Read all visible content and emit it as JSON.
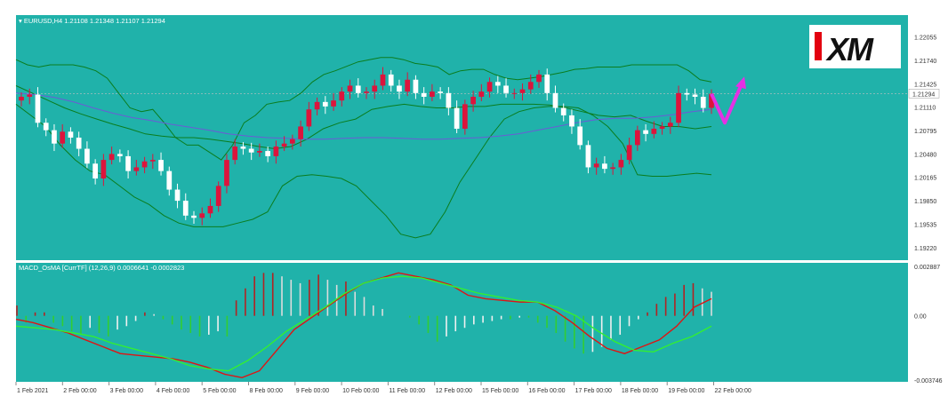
{
  "chart_data": [
    {
      "type": "candlestick",
      "title": "EURUSD,H4  1.21108 1.21348 1.21107 1.21294",
      "symbol": "EURUSD,H4",
      "ohlc_header": "1.21108 1.21348 1.21107 1.21294",
      "current_price_label": "1.21294",
      "current_price": 1.21294,
      "ylim": [
        1.1905,
        1.2235
      ],
      "y_ticks": [
        "1.22055",
        "1.21740",
        "1.21425",
        "1.21110",
        "1.20795",
        "1.20480",
        "1.20165",
        "1.19850",
        "1.19535",
        "1.19220"
      ],
      "x_ticks": [
        "1 Feb 2021",
        "2 Feb 00:00",
        "3 Feb 00:00",
        "4 Feb 00:00",
        "5 Feb 00:00",
        "8 Feb 00:00",
        "9 Feb 00:00",
        "10 Feb 00:00",
        "11 Feb 00:00",
        "12 Feb 00:00",
        "15 Feb 00:00",
        "16 Feb 00:00",
        "17 Feb 00:00",
        "18 Feb 00:00",
        "19 Feb 00:00",
        "22 Feb 00:00"
      ],
      "candles_close": [
        1.2125,
        1.2128,
        1.209,
        1.208,
        1.2062,
        1.2078,
        1.207,
        1.2055,
        1.2035,
        1.2015,
        1.204,
        1.2048,
        1.2045,
        1.2025,
        1.203,
        1.2038,
        1.204,
        1.2025,
        1.2,
        1.1985,
        1.1965,
        1.1962,
        1.1968,
        1.1978,
        1.2005,
        1.204,
        1.2058,
        1.2055,
        1.205,
        1.2052,
        1.2045,
        1.2058,
        1.2062,
        1.2068,
        1.2085,
        1.2108,
        1.2118,
        1.2112,
        1.212,
        1.2132,
        1.214,
        1.213,
        1.2132,
        1.214,
        1.2155,
        1.214,
        1.2132,
        1.2148,
        1.213,
        1.2125,
        1.2132,
        1.213,
        1.211,
        1.2082,
        1.2115,
        1.2125,
        1.2132,
        1.2145,
        1.214,
        1.213,
        1.213,
        1.2135,
        1.2145,
        1.2155,
        1.213,
        1.211,
        1.21,
        1.2085,
        1.206,
        1.203,
        1.2035,
        1.2028,
        1.203,
        1.204,
        1.206,
        1.208,
        1.2075,
        1.2082,
        1.2085,
        1.209,
        1.213,
        1.2128,
        1.2125,
        1.211,
        1.2129
      ],
      "bollinger_upper": [
        1.2175,
        1.2168,
        1.2165,
        1.2168,
        1.2168,
        1.2168,
        1.2165,
        1.216,
        1.215,
        1.213,
        1.211,
        1.2105,
        1.2108,
        1.209,
        1.207,
        1.206,
        1.206,
        1.205,
        1.204,
        1.206,
        1.209,
        1.21,
        1.2115,
        1.2118,
        1.212,
        1.213,
        1.2145,
        1.2155,
        1.216,
        1.2166,
        1.2172,
        1.2175,
        1.2178,
        1.2178,
        1.2175,
        1.217,
        1.2168,
        1.2165,
        1.2155,
        1.216,
        1.2162,
        1.2162,
        1.2155,
        1.215,
        1.2148,
        1.215,
        1.2152,
        1.2155,
        1.2158,
        1.2162,
        1.2163,
        1.2165,
        1.2165,
        1.2165,
        1.2168,
        1.2168,
        1.2168,
        1.2168,
        1.2168,
        1.216,
        1.2148,
        1.2145
      ],
      "bollinger_middle": [
        1.214,
        1.213,
        1.212,
        1.211,
        1.2102,
        1.2095,
        1.2088,
        1.2082,
        1.2075,
        1.2072,
        1.207,
        1.207,
        1.2068,
        1.2065,
        1.2062,
        1.2058,
        1.2055,
        1.2058,
        1.2068,
        1.2082,
        1.209,
        1.2095,
        1.2108,
        1.2112,
        1.2115,
        1.2112,
        1.211,
        1.211,
        1.2112,
        1.2112,
        1.2115,
        1.2115,
        1.2115,
        1.2114,
        1.211,
        1.2105,
        1.21,
        1.2098,
        1.21,
        1.2092,
        1.2085,
        1.2085,
        1.2082,
        1.2085
      ],
      "bollinger_lower": [
        1.2115,
        1.21,
        1.2085,
        1.206,
        1.204,
        1.2025,
        1.202,
        1.2005,
        1.199,
        1.198,
        1.1965,
        1.1955,
        1.195,
        1.195,
        1.195,
        1.1955,
        1.196,
        1.197,
        1.2005,
        1.2018,
        1.202,
        1.2018,
        1.2015,
        1.2005,
        1.1985,
        1.1965,
        1.194,
        1.1935,
        1.194,
        1.197,
        1.201,
        1.204,
        1.207,
        1.2095,
        1.2105,
        1.211,
        1.2112,
        1.2112,
        1.211,
        1.21,
        1.2085,
        1.2062,
        1.202,
        1.2018,
        1.2018,
        1.202,
        1.2022,
        1.202
      ],
      "moving_average": [
        1.213,
        1.2128,
        1.2124,
        1.2118,
        1.211,
        1.2103,
        1.2097,
        1.2093,
        1.2088,
        1.2084,
        1.208,
        1.2075,
        1.2072,
        1.207,
        1.2069,
        1.2068,
        1.2068,
        1.2069,
        1.207,
        1.207,
        1.2069,
        1.2068,
        1.2068,
        1.2069,
        1.207,
        1.2072,
        1.2075,
        1.208,
        1.2085,
        1.209,
        1.2094,
        1.2096,
        1.2096,
        1.2098,
        1.2101,
        1.2105,
        1.2108
      ],
      "forecast_arrow_prices": [
        1.2129,
        1.209,
        1.2145
      ],
      "logo_text": "XM"
    },
    {
      "type": "histogram",
      "title": "MACD_OsMA [CurrTF] (12,26,9) 0.0006641 -0.0002823",
      "indicator": "MACD_OsMA [CurrTF] (12,26,9)",
      "values_text": "0.0006641 -0.0002823",
      "ylim": [
        -0.00374,
        0.00288
      ],
      "y_ticks": [
        "0.002887",
        "0.00",
        "-0.003746"
      ],
      "histogram": [
        0.0006,
        -0.0004,
        0.0002,
        0.0002,
        -0.0004,
        -0.0006,
        -0.0009,
        -0.0011,
        -0.0007,
        -0.001,
        -0.0012,
        -0.0008,
        -0.0006,
        -0.0003,
        0.0002,
        0.0001,
        -0.0002,
        -0.0005,
        -0.0008,
        -0.001,
        -0.0012,
        -0.0011,
        -0.0009,
        -0.0012,
        0.0009,
        0.0016,
        0.0023,
        0.0025,
        0.0025,
        0.0023,
        0.0021,
        0.0019,
        0.0021,
        0.0024,
        0.0021,
        0.0018,
        0.002,
        0.0014,
        0.0011,
        0.0006,
        0.0004,
        0.0,
        0.0,
        -0.0001,
        -0.0005,
        -0.001,
        -0.0015,
        -0.0012,
        -0.0009,
        -0.0007,
        -0.0005,
        -0.0004,
        -0.0003,
        -0.0002,
        -0.0002,
        -0.0001,
        -0.0001,
        -0.0004,
        -0.0007,
        -0.001,
        -0.0015,
        -0.0019,
        -0.0022,
        -0.0021,
        -0.0018,
        -0.0014,
        -0.0011,
        -0.0006,
        -0.0002,
        0.0002,
        0.0007,
        0.0011,
        0.0013,
        0.0018,
        0.0019,
        0.0016,
        0.0014
      ],
      "series": [
        {
          "name": "",
          "color": "#e01313",
          "values": [
            -0.0002,
            -0.0004,
            -0.0007,
            -0.001,
            -0.0014,
            -0.0018,
            -0.0022,
            -0.0023,
            -0.0024,
            -0.0025,
            -0.0027,
            -0.003,
            -0.0034,
            -0.0036,
            -0.0032,
            -0.002,
            -0.0008,
            -0.0001,
            0.0006,
            0.0013,
            0.0019,
            0.0022,
            0.0025,
            0.0023,
            0.0021,
            0.0018,
            0.0012,
            0.001,
            0.0009,
            0.0008,
            0.0008,
            0.0003,
            -0.0004,
            -0.0012,
            -0.0019,
            -0.0022,
            -0.0018,
            -0.0014,
            -0.0006,
            0.0005,
            0.001
          ]
        },
        {
          "name": "",
          "color": "#33ee33",
          "values": [
            -0.0006,
            -0.0007,
            -0.0008,
            -0.001,
            -0.0012,
            -0.0016,
            -0.0019,
            -0.0022,
            -0.0025,
            -0.0029,
            -0.0031,
            -0.0032,
            -0.0026,
            -0.0018,
            -0.0009,
            -0.0002,
            0.0005,
            0.0013,
            0.0019,
            0.0022,
            0.0023,
            0.0022,
            0.0019,
            0.0016,
            0.0013,
            0.0011,
            0.0009,
            0.0008,
            0.0005,
            0.0,
            -0.0008,
            -0.0015,
            -0.002,
            -0.0021,
            -0.0016,
            -0.0012,
            -0.0006
          ]
        }
      ]
    }
  ]
}
